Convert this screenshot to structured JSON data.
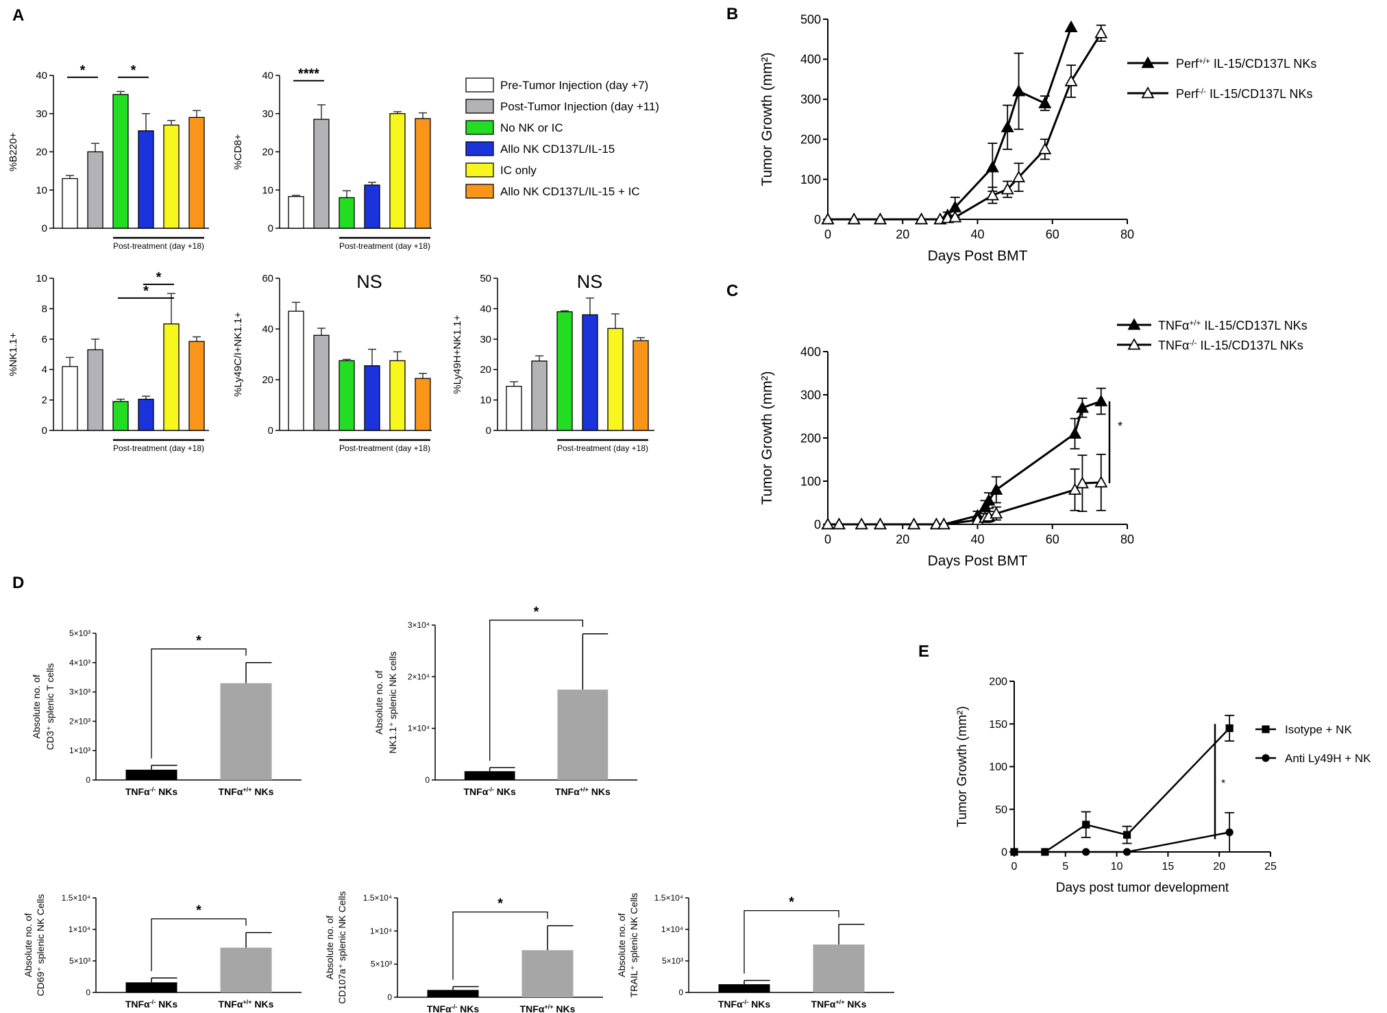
{
  "colors": {
    "white": "#ffffff",
    "gray": "#b3b3b5",
    "green": "#22dd22",
    "blue": "#1a33dd",
    "yellow": "#f7f71e",
    "orange": "#f9961a",
    "black": "#000000",
    "lightgray": "#a6a6a6"
  },
  "panel_letters": [
    "A",
    "B",
    "C",
    "D",
    "E"
  ],
  "legend_a": [
    {
      "label": "Pre-Tumor Injection (day +7)",
      "color": "white"
    },
    {
      "label": "Post-Tumor Injection (day +11)",
      "color": "gray"
    },
    {
      "label": "No NK or IC",
      "color": "green"
    },
    {
      "label": "Allo NK CD137L/IL-15",
      "color": "blue"
    },
    {
      "label": "IC only",
      "color": "yellow"
    },
    {
      "label": "Allo NK CD137L/IL-15 + IC",
      "color": "orange"
    }
  ],
  "chart_data": [
    {
      "id": "A1",
      "type": "bar",
      "ylabel": "%B220+",
      "ylim": [
        0,
        40
      ],
      "yticks": [
        "0",
        "10",
        "20",
        "30",
        "40"
      ],
      "categories": [
        "Pre-Tumor Injection (day +7)",
        "Post-Tumor Injection (day +11)",
        "No NK or IC",
        "Allo NK CD137L/IL-15",
        "IC only",
        "Allo NK CD137L/IL-15 + IC"
      ],
      "values": [
        13,
        20,
        35,
        25.5,
        27,
        29
      ],
      "errors": [
        0.8,
        2.2,
        0.8,
        4.5,
        1.2,
        1.8
      ],
      "bracket_label": "Post-treatment (day +18)",
      "significance": [
        {
          "from": 0,
          "to": 1,
          "label": "*"
        },
        {
          "from": 2,
          "to": 3,
          "label": "*"
        }
      ]
    },
    {
      "id": "A2",
      "type": "bar",
      "ylabel": "%CD8+",
      "ylim": [
        0,
        40
      ],
      "yticks": [
        "0",
        "10",
        "20",
        "30",
        "40"
      ],
      "categories": [
        "Pre-Tumor Injection (day +7)",
        "Post-Tumor Injection (day +11)",
        "No NK or IC",
        "Allo NK CD137L/IL-15",
        "IC only",
        "Allo NK CD137L/IL-15 + IC"
      ],
      "values": [
        8.3,
        28.5,
        8,
        11.3,
        30,
        28.7
      ],
      "errors": [
        0.3,
        3.8,
        1.8,
        0.7,
        0.5,
        1.5
      ],
      "bracket_label": "Post-treatment (day +18)",
      "significance": [
        {
          "from": 0,
          "to": 1,
          "label": "****"
        }
      ]
    },
    {
      "id": "A3",
      "type": "bar",
      "ylabel": "%NK1.1+",
      "ylim": [
        0,
        10
      ],
      "yticks": [
        "0",
        "2",
        "4",
        "6",
        "8",
        "10"
      ],
      "categories": [
        "Pre-Tumor Injection (day +7)",
        "Post-Tumor Injection (day +11)",
        "No NK or IC",
        "Allo NK CD137L/IL-15",
        "IC only",
        "Allo NK CD137L/IL-15 + IC"
      ],
      "values": [
        4.2,
        5.3,
        1.9,
        2.05,
        7,
        5.85
      ],
      "errors": [
        0.6,
        0.7,
        0.15,
        0.2,
        2,
        0.3
      ],
      "bracket_label": "Post-treatment (day +18)",
      "significance": [
        {
          "from": 2,
          "to": 4,
          "label": "*"
        },
        {
          "from": 3,
          "to": 4,
          "label": "*"
        }
      ]
    },
    {
      "id": "A4",
      "type": "bar",
      "ylabel": "%Ly49C/I+NK1.1+",
      "ylim": [
        0,
        60
      ],
      "yticks": [
        "0",
        "20",
        "40",
        "60"
      ],
      "categories": [
        "Pre-Tumor Injection (day +7)",
        "Post-Tumor Injection (day +11)",
        "No NK or IC",
        "Allo NK CD137L/IL-15",
        "IC only",
        "Allo NK CD137L/IL-15 + IC"
      ],
      "values": [
        47,
        37.5,
        27.5,
        25.5,
        27.5,
        20.5
      ],
      "errors": [
        3.5,
        2.8,
        0.5,
        6.5,
        3.5,
        2
      ],
      "bracket_label": "Post-treatment (day +18)",
      "annotation": "NS"
    },
    {
      "id": "A5",
      "type": "bar",
      "ylabel": "%Ly49H+NK1.1+",
      "ylim": [
        0,
        50
      ],
      "yticks": [
        "0",
        "10",
        "20",
        "30",
        "40",
        "50"
      ],
      "categories": [
        "Pre-Tumor Injection (day +7)",
        "Post-Tumor Injection (day +11)",
        "No NK or IC",
        "Allo NK CD137L/IL-15",
        "IC only",
        "Allo NK CD137L/IL-15 + IC"
      ],
      "values": [
        14.5,
        22.8,
        39,
        38,
        33.5,
        29.5
      ],
      "errors": [
        1.5,
        1.7,
        0.3,
        5.5,
        4.8,
        1
      ],
      "bracket_label": "Post-treatment (day +18)",
      "annotation": "NS"
    },
    {
      "id": "B",
      "type": "line",
      "xlabel": "Days Post BMT",
      "ylabel": "Tumor Growth (mm²)",
      "xlim": [
        0,
        80
      ],
      "ylim": [
        0,
        500
      ],
      "xticks": [
        "0",
        "20",
        "40",
        "60",
        "80"
      ],
      "yticks": [
        "0",
        "100",
        "200",
        "300",
        "400",
        "500"
      ],
      "series": [
        {
          "name": "Perf+/+ IL-15/CD137L NKs",
          "name_main": "Perf",
          "name_sup": "+/+",
          "name_rest": " IL-15/CD137L NKs",
          "marker": "filled-triangle",
          "x": [
            0,
            7,
            14,
            25,
            30,
            32,
            34,
            44,
            48,
            51,
            58,
            65
          ],
          "y": [
            0,
            0,
            0,
            0,
            0,
            10,
            30,
            130,
            230,
            320,
            290,
            480
          ],
          "err": [
            0,
            0,
            0,
            0,
            0,
            8,
            25,
            60,
            55,
            95,
            18,
            0
          ]
        },
        {
          "name": "Perf-/- IL-15/CD137L NKs",
          "name_main": "Perf",
          "name_sup": "-/-",
          "name_rest": " IL-15/CD137L NKs",
          "marker": "open-triangle",
          "x": [
            0,
            7,
            14,
            25,
            30,
            32,
            34,
            44,
            48,
            51,
            58,
            65,
            73
          ],
          "y": [
            0,
            0,
            0,
            0,
            0,
            3,
            5,
            60,
            75,
            105,
            175,
            345,
            465
          ],
          "err": [
            0,
            0,
            0,
            0,
            0,
            3,
            5,
            20,
            20,
            35,
            25,
            40,
            20
          ]
        }
      ]
    },
    {
      "id": "C",
      "type": "line",
      "xlabel": "Days Post BMT",
      "ylabel": "Tumor Growth (mm²)",
      "xlim": [
        0,
        80
      ],
      "ylim": [
        0,
        400
      ],
      "xticks": [
        "0",
        "20",
        "40",
        "60",
        "80"
      ],
      "yticks": [
        "0",
        "100",
        "200",
        "300",
        "400"
      ],
      "significance_label": "*",
      "series": [
        {
          "name": "TNFα+/+ IL-15/CD137L NKs",
          "name_main": "TNFα",
          "name_sup": "+/+",
          "name_rest": " IL-15/CD137L NKs",
          "marker": "filled-triangle",
          "x": [
            0,
            3,
            9,
            14,
            23,
            29,
            31,
            40,
            42,
            43,
            45,
            66,
            68,
            73
          ],
          "y": [
            0,
            0,
            0,
            0,
            0,
            0,
            0,
            20,
            40,
            55,
            80,
            210,
            270,
            285
          ],
          "err": [
            0,
            0,
            0,
            0,
            0,
            0,
            0,
            10,
            15,
            18,
            30,
            35,
            22,
            30
          ]
        },
        {
          "name": "TNFα-/- IL-15/CD137L NKs",
          "name_main": "TNFα",
          "name_sup": "-/-",
          "name_rest": " IL-15/CD137L NKs",
          "marker": "open-triangle",
          "x": [
            0,
            3,
            9,
            14,
            23,
            29,
            31,
            40,
            42,
            43,
            45,
            66,
            68,
            73
          ],
          "y": [
            0,
            0,
            0,
            0,
            0,
            0,
            0,
            10,
            15,
            18,
            25,
            80,
            95,
            97
          ],
          "err": [
            0,
            0,
            0,
            0,
            0,
            0,
            0,
            8,
            10,
            12,
            15,
            48,
            65,
            65
          ]
        }
      ]
    },
    {
      "id": "D1",
      "type": "bar",
      "ylabel_line1": "Absolute no. of",
      "ylabel_line2": "CD3⁺ splenic T cells",
      "ylim": [
        0,
        5000
      ],
      "yticks": [
        "0",
        "1×10³",
        "2×10³",
        "3×10³",
        "4×10³",
        "5×10³"
      ],
      "categories": [
        "TNFα-/- NKs",
        "TNFα+/+ NKs"
      ],
      "cat_main": [
        "TNFα",
        "TNFα"
      ],
      "cat_sup": [
        "-/-",
        "+/+"
      ],
      "cat_rest": [
        " NKs",
        " NKs"
      ],
      "values": [
        350,
        3300
      ],
      "errors": [
        150,
        700
      ],
      "significance_label": "*"
    },
    {
      "id": "D2",
      "type": "bar",
      "ylabel_line1": "Absolute no. of",
      "ylabel_line2": "NK1.1⁺ splenic NK cells",
      "ylim": [
        0,
        30000
      ],
      "yticks": [
        "0",
        "1×10⁴",
        "2×10⁴",
        "3×10⁴"
      ],
      "categories": [
        "TNFα-/- NKs",
        "TNFα+/+ NKs"
      ],
      "cat_main": [
        "TNFα",
        "TNFα"
      ],
      "cat_sup": [
        "-/-",
        "+/+"
      ],
      "cat_rest": [
        " NKs",
        " NKs"
      ],
      "values": [
        1700,
        17500
      ],
      "errors": [
        700,
        10800
      ],
      "significance_label": "*"
    },
    {
      "id": "D3",
      "type": "bar",
      "ylabel_line1": "Absolute no. of",
      "ylabel_line2": "CD69⁺ splenic NK Cells",
      "ylim": [
        0,
        15000
      ],
      "yticks": [
        "0",
        "5×10³",
        "1×10⁴",
        "1.5×10⁴"
      ],
      "categories": [
        "TNFα-/- NKs",
        "TNFα+/+ NKs"
      ],
      "cat_main": [
        "TNFα",
        "TNFα"
      ],
      "cat_sup": [
        "-/-",
        "+/+"
      ],
      "cat_rest": [
        " NKs",
        " NKs"
      ],
      "values": [
        1600,
        7100
      ],
      "errors": [
        700,
        2400
      ],
      "significance_label": "*"
    },
    {
      "id": "D4",
      "type": "bar",
      "ylabel_line1": "Absolute no. of",
      "ylabel_line2": "CD107a⁺ splenic NK Cells",
      "ylim": [
        0,
        15000
      ],
      "yticks": [
        "0",
        "5×10³",
        "1×10⁴",
        "1.5×10⁴"
      ],
      "categories": [
        "TNFα-/- NKs",
        "TNFα+/+ NKs"
      ],
      "cat_main": [
        "TNFα",
        "TNFα"
      ],
      "cat_sup": [
        "-/-",
        "+/+"
      ],
      "cat_rest": [
        " NKs",
        " NKs"
      ],
      "values": [
        1100,
        7100
      ],
      "errors": [
        500,
        3700
      ],
      "significance_label": "*"
    },
    {
      "id": "D5",
      "type": "bar",
      "ylabel_line1": "Absolute no. of",
      "ylabel_line2": "TRAIL⁺ splenic NK Cells",
      "ylim": [
        0,
        15000
      ],
      "yticks": [
        "0",
        "5×10³",
        "1×10⁴",
        "1.5×10⁴"
      ],
      "categories": [
        "TNFα-/- NKs",
        "TNFα+/+ NKs"
      ],
      "cat_main": [
        "TNFα",
        "TNFα"
      ],
      "cat_sup": [
        "-/-",
        "+/+"
      ],
      "cat_rest": [
        " NKs",
        " NKs"
      ],
      "values": [
        1300,
        7600
      ],
      "errors": [
        600,
        3200
      ],
      "significance_label": "*"
    },
    {
      "id": "E",
      "type": "line",
      "xlabel": "Days post tumor development",
      "ylabel": "Tumor Growth (mm²)",
      "xlim": [
        0,
        25
      ],
      "ylim": [
        0,
        200
      ],
      "xticks": [
        "0",
        "5",
        "10",
        "15",
        "20",
        "25"
      ],
      "yticks": [
        "0",
        "50",
        "100",
        "150",
        "200"
      ],
      "significance_label": "*",
      "series": [
        {
          "name": "Isotype + NK",
          "marker": "square",
          "x": [
            0,
            3,
            7,
            11,
            21
          ],
          "y": [
            0,
            0,
            32,
            20,
            145
          ],
          "err": [
            0,
            0,
            15,
            10,
            15
          ]
        },
        {
          "name": "Anti Ly49H + NK",
          "marker": "circle",
          "x": [
            0,
            3,
            7,
            11,
            21
          ],
          "y": [
            0,
            0,
            0,
            0,
            23
          ],
          "err": [
            0,
            0,
            0,
            0,
            23
          ]
        }
      ]
    }
  ]
}
